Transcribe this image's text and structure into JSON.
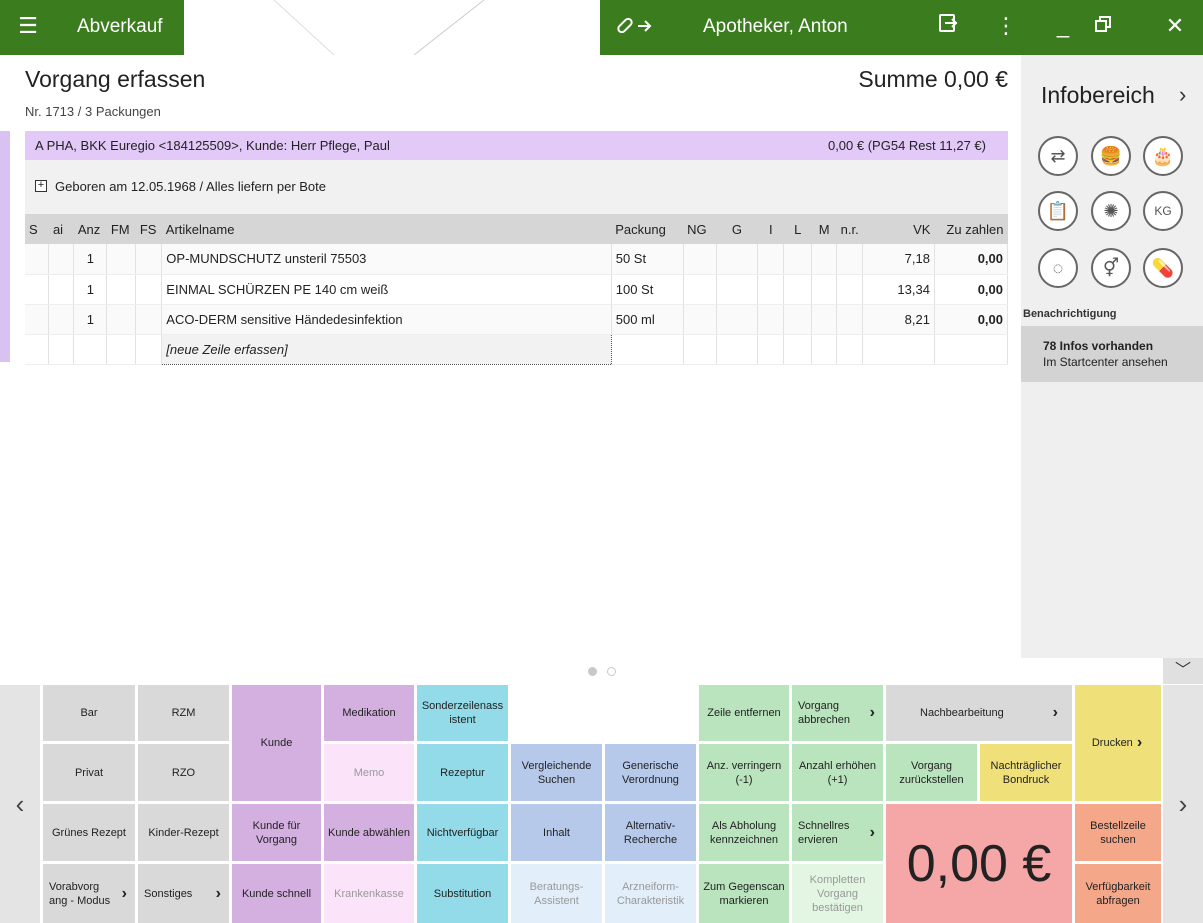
{
  "titlebar": {
    "app_name": "Abverkauf",
    "user": "Apotheker, Anton",
    "link_icon": "link-arrow-icon",
    "menu_icon": "hamburger-icon"
  },
  "header": {
    "title": "Vorgang erfassen",
    "subtitle": "Nr. 1713 / 3 Packungen",
    "sum": "Summe 0,00 €"
  },
  "customer": {
    "text": "A  PHA, BKK Euregio <184125509>, Kunde: Herr Pflege, Paul",
    "amount": "0,00 € (PG54 Rest 11,27 €)",
    "info": "Geboren am 12.05.1968 / Alles liefern per Bote"
  },
  "table": {
    "columns": [
      "S",
      "ai",
      "Anz",
      "FM",
      "FS",
      "Artikelname",
      "Packung",
      "NG",
      "G",
      "I",
      "L",
      "M",
      "n.r.",
      "VK",
      "Zu zahlen"
    ],
    "rows": [
      {
        "anz": "1",
        "name": "OP-MUNDSCHUTZ unsteril 75503",
        "packung": "50 St",
        "vk": "7,18",
        "zu_zahlen": "0,00"
      },
      {
        "anz": "1",
        "name": "EINMAL SCHÜRZEN PE 140 cm weiß",
        "packung": "100 St",
        "vk": "13,34",
        "zu_zahlen": "0,00"
      },
      {
        "anz": "1",
        "name": "ACO-DERM sensitive Händedesinfektion",
        "packung": "500 ml",
        "vk": "8,21",
        "zu_zahlen": "0,00"
      }
    ],
    "new_row": "[neue Zeile erfassen]"
  },
  "side": {
    "title": "Infobereich",
    "notification_label": "Benachrichtigung",
    "notification_count": "78  Infos vorhanden",
    "notification_link": "Im Startcenter ansehen"
  },
  "keypad": {
    "bar": "Bar",
    "rzm": "RZM",
    "kunde": "Kunde",
    "medikation": "Medikation",
    "sonderzeile": "Sonderzeilenass istent",
    "zeile_entfernen": "Zeile entfernen",
    "vorgang_abbrechen": "Vorgang abbrechen",
    "nachbearbeitung": "Nachbearbeitung",
    "drucken": "Drucken",
    "privat": "Privat",
    "rzo": "RZO",
    "memo": "Memo",
    "rezeptur": "Rezeptur",
    "vergleichende": "Vergleichende Suchen",
    "generische": "Generische Verordnung",
    "anz_verringern": "Anz. verringern (-1)",
    "anzahl_erhoehen": "Anzahl erhöhen (+1)",
    "vorgang_zurueck": "Vorgang zurückstellen",
    "nachtraeglicher": "Nachträglicher Bondruck",
    "gruenes": "Grünes Rezept",
    "kinder": "Kinder-Rezept",
    "kunde_fuer": "Kunde für Vorgang",
    "kunde_abwaehlen": "Kunde abwählen",
    "nichtverfuegbar": "Nichtverfügbar",
    "inhalt": "Inhalt",
    "alternativ": "Alternativ-Recherche",
    "abholung": "Als Abholung kennzeichnen",
    "schnellres": "Schnellres ervieren",
    "bestellzeile": "Bestellzeile suchen",
    "vorabvorgang": "Vorabvorg ang - Modus",
    "sonstiges": "Sonstiges",
    "kunde_schnell": "Kunde schnell",
    "krankenkasse": "Krankenkasse",
    "substitution": "Substitution",
    "beratung": "Beratungs-Assistent",
    "arzneiform": "Arzneiform-Charakteristik",
    "gegenscan": "Zum Gegenscan markieren",
    "kompletten": "Kompletten Vorgang bestätigen",
    "verfuegbarkeit": "Verfügbarkeit abfragen",
    "total": "0,00 €"
  }
}
